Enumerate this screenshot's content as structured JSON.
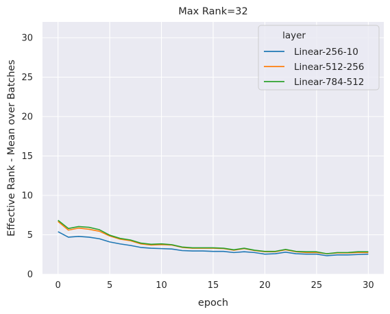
{
  "chart_data": {
    "type": "line",
    "title": "Max Rank=32",
    "xlabel": "epoch",
    "ylabel": "Effective Rank - Mean over Batches",
    "xlim": [
      -1.5,
      31.5
    ],
    "ylim": [
      0,
      32
    ],
    "xticks": [
      "0",
      "5",
      "10",
      "15",
      "20",
      "25",
      "30"
    ],
    "yticks": [
      "0",
      "5",
      "10",
      "15",
      "20",
      "25",
      "30"
    ],
    "grid": true,
    "legend_position": "top-right",
    "legend_title": "layer",
    "x": [
      0,
      1,
      2,
      3,
      4,
      5,
      6,
      7,
      8,
      9,
      10,
      11,
      12,
      13,
      14,
      15,
      16,
      17,
      18,
      19,
      20,
      21,
      22,
      23,
      24,
      25,
      26,
      27,
      28,
      29,
      30
    ],
    "series": [
      {
        "name": "Linear-256-10",
        "color": "#1f77b4",
        "values": [
          5.4,
          4.7,
          4.8,
          4.7,
          4.5,
          4.1,
          3.85,
          3.65,
          3.4,
          3.3,
          3.25,
          3.2,
          3.0,
          2.95,
          2.95,
          2.9,
          2.9,
          2.75,
          2.85,
          2.75,
          2.55,
          2.6,
          2.8,
          2.6,
          2.55,
          2.55,
          2.35,
          2.45,
          2.45,
          2.5,
          2.55
        ]
      },
      {
        "name": "Linear-512-256",
        "color": "#ff7f0e",
        "values": [
          6.7,
          5.6,
          5.85,
          5.7,
          5.45,
          4.85,
          4.45,
          4.25,
          3.85,
          3.7,
          3.75,
          3.7,
          3.4,
          3.3,
          3.3,
          3.3,
          3.25,
          3.05,
          3.25,
          3.0,
          2.85,
          2.85,
          3.1,
          2.85,
          2.75,
          2.75,
          2.6,
          2.7,
          2.7,
          2.75,
          2.75
        ]
      },
      {
        "name": "Linear-784-512",
        "color": "#2ca02c",
        "values": [
          6.85,
          5.8,
          6.05,
          5.95,
          5.65,
          4.95,
          4.55,
          4.35,
          3.95,
          3.8,
          3.85,
          3.75,
          3.45,
          3.35,
          3.35,
          3.35,
          3.3,
          3.1,
          3.3,
          3.05,
          2.9,
          2.9,
          3.15,
          2.9,
          2.85,
          2.85,
          2.6,
          2.75,
          2.75,
          2.85,
          2.85
        ]
      }
    ]
  },
  "colors": {
    "plot_background": "#eaeaf2",
    "grid": "#ffffff",
    "text": "#262626"
  }
}
